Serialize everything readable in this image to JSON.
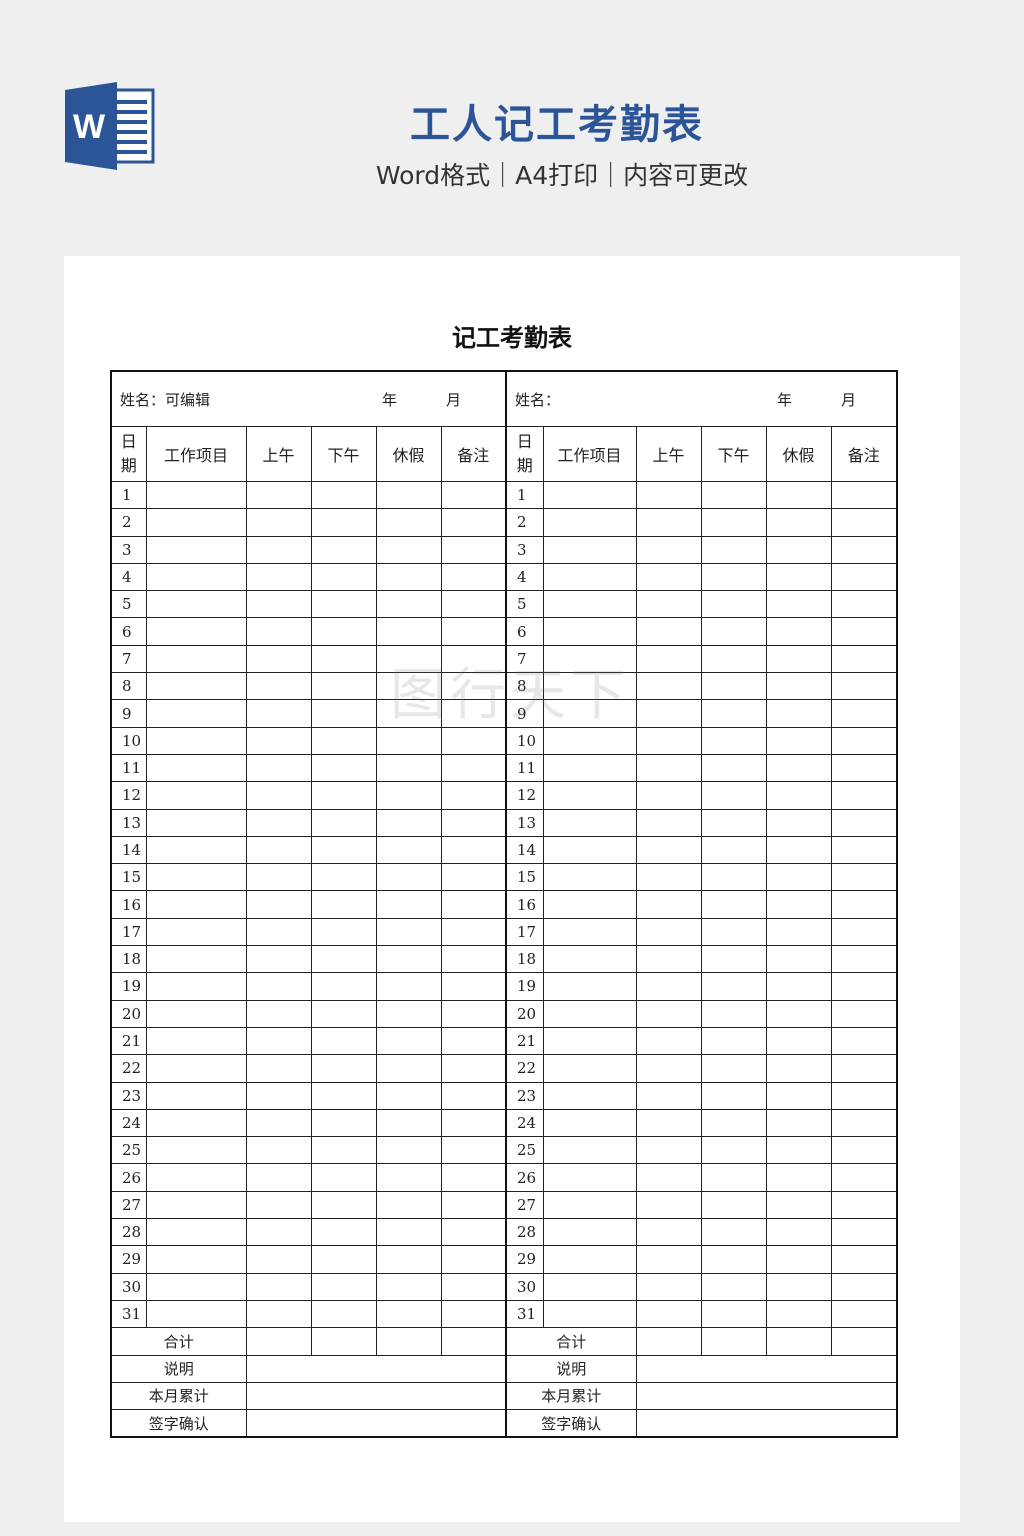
{
  "banner": {
    "title": "工人记工考勤表",
    "subtitle": "Word格式｜A4打印｜内容可更改",
    "logo_letter": "W",
    "brand_color": "#2c5597"
  },
  "document": {
    "title": "记工考勤表",
    "left": {
      "name_label": "姓名：可编辑",
      "year": "年",
      "month": "月"
    },
    "right": {
      "name_label": "姓名：",
      "year": "年",
      "month": "月"
    },
    "columns": {
      "date_top": "日",
      "date_bottom": "期",
      "work": "工作项目",
      "am": "上午",
      "pm": "下午",
      "leave": "休假",
      "remark": "备注"
    },
    "days": [
      "1",
      "2",
      "3",
      "4",
      "5",
      "6",
      "7",
      "8",
      "9",
      "10",
      "11",
      "12",
      "13",
      "14",
      "15",
      "16",
      "17",
      "18",
      "19",
      "20",
      "21",
      "22",
      "23",
      "24",
      "25",
      "26",
      "27",
      "28",
      "29",
      "30",
      "31"
    ],
    "footer": [
      "合计",
      "说明",
      "本月累计",
      "签字确认"
    ]
  },
  "watermark": "图行天下"
}
